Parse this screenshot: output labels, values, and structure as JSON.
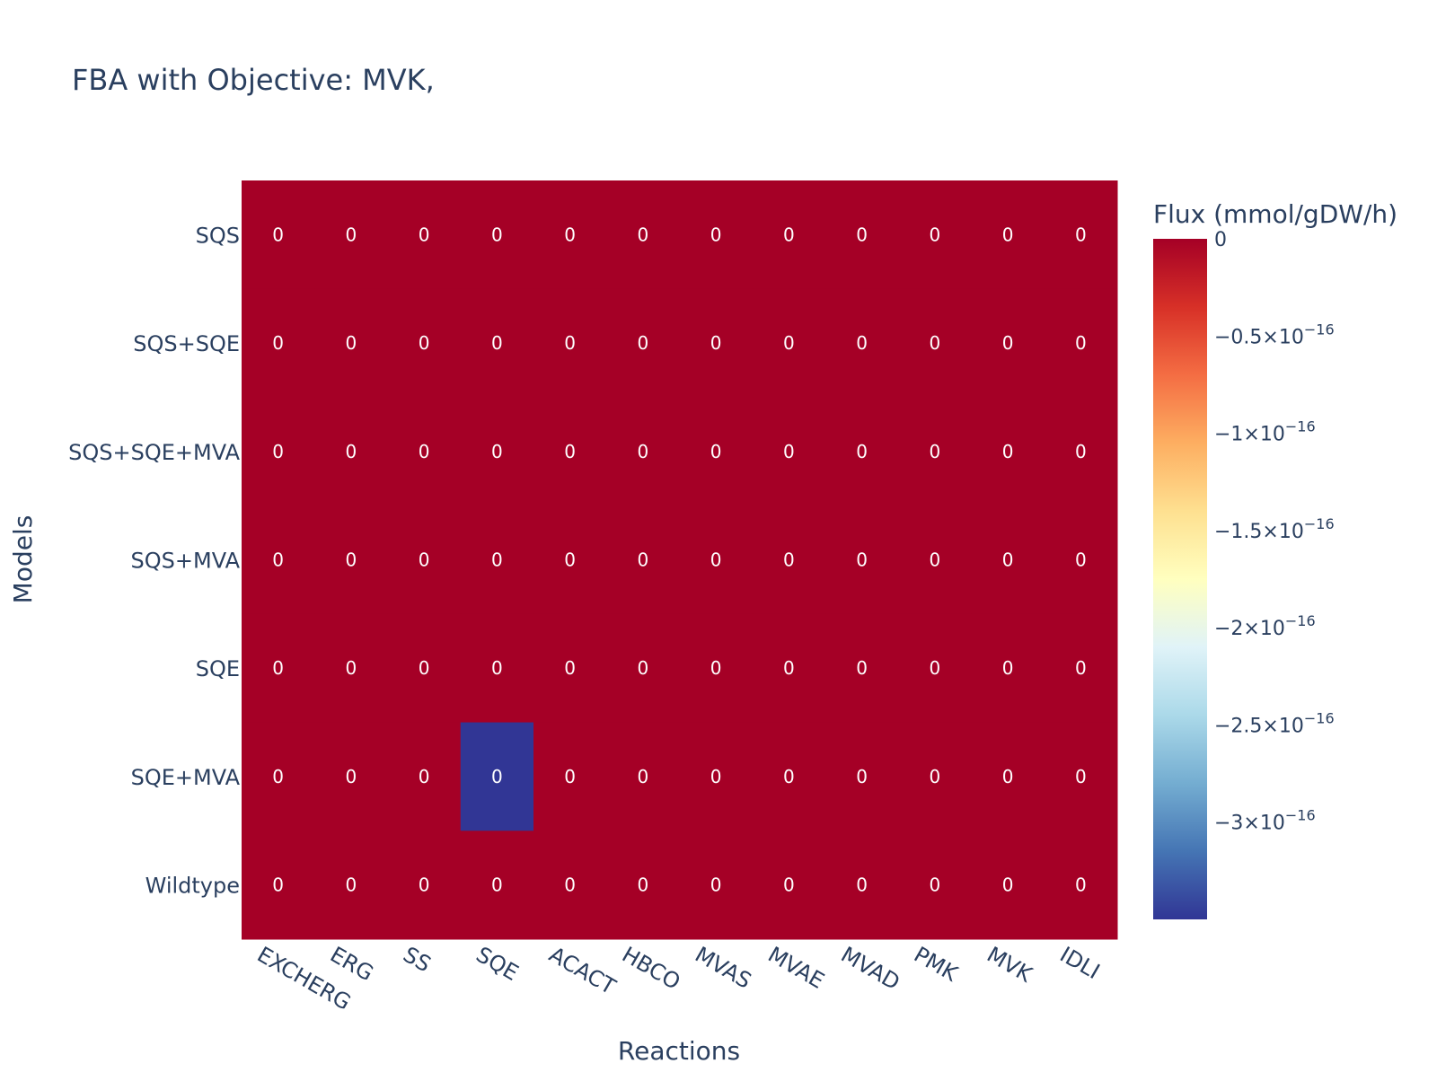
{
  "chart_data": {
    "type": "heatmap",
    "title": "FBA with Objective: MVK,",
    "xlabel": "Reactions",
    "ylabel": "Models",
    "x": [
      "EXCHERG",
      "ERG",
      "SS",
      "SQE",
      "ACACT",
      "HBCO",
      "MVAS",
      "MVAE",
      "MVAD",
      "PMK",
      "MVK",
      "IDLI"
    ],
    "y": [
      "SQS",
      "SQS+SQE",
      "SQS+SQE+MVA",
      "SQS+MVA",
      "SQE",
      "SQE+MVA",
      "Wildtype"
    ],
    "z": [
      [
        0,
        0,
        0,
        0,
        0,
        0,
        0,
        0,
        0,
        0,
        0,
        0
      ],
      [
        0,
        0,
        0,
        0,
        0,
        0,
        0,
        0,
        0,
        0,
        0,
        0
      ],
      [
        0,
        0,
        0,
        0,
        0,
        0,
        0,
        0,
        0,
        0,
        0,
        0
      ],
      [
        0,
        0,
        0,
        0,
        0,
        0,
        0,
        0,
        0,
        0,
        0,
        0
      ],
      [
        0,
        0,
        0,
        0,
        0,
        0,
        0,
        0,
        0,
        0,
        0,
        0
      ],
      [
        0,
        0,
        0,
        -3.5e-16,
        0,
        0,
        0,
        0,
        0,
        0,
        0,
        0
      ],
      [
        0,
        0,
        0,
        0,
        0,
        0,
        0,
        0,
        0,
        0,
        0,
        0
      ]
    ],
    "cell_labels": [
      [
        "0",
        "0",
        "0",
        "0",
        "0",
        "0",
        "0",
        "0",
        "0",
        "0",
        "0",
        "0"
      ],
      [
        "0",
        "0",
        "0",
        "0",
        "0",
        "0",
        "0",
        "0",
        "0",
        "0",
        "0",
        "0"
      ],
      [
        "0",
        "0",
        "0",
        "0",
        "0",
        "0",
        "0",
        "0",
        "0",
        "0",
        "0",
        "0"
      ],
      [
        "0",
        "0",
        "0",
        "0",
        "0",
        "0",
        "0",
        "0",
        "0",
        "0",
        "0",
        "0"
      ],
      [
        "0",
        "0",
        "0",
        "0",
        "0",
        "0",
        "0",
        "0",
        "0",
        "0",
        "0",
        "0"
      ],
      [
        "0",
        "0",
        "0",
        "0",
        "0",
        "0",
        "0",
        "0",
        "0",
        "0",
        "0",
        "0"
      ],
      [
        "0",
        "0",
        "0",
        "0",
        "0",
        "0",
        "0",
        "0",
        "0",
        "0",
        "0",
        "0"
      ]
    ],
    "colorbar": {
      "title": "Flux (mmol/gDW/h)",
      "range": [
        -3.5e-16,
        0
      ],
      "ticks": [
        {
          "value": 0,
          "label": "0"
        },
        {
          "value": -5e-17,
          "label": "−0.5×10",
          "exp": "−16"
        },
        {
          "value": -1e-16,
          "label": "−1×10",
          "exp": "−16"
        },
        {
          "value": -1.5e-16,
          "label": "−1.5×10",
          "exp": "−16"
        },
        {
          "value": -2e-16,
          "label": "−2×10",
          "exp": "−16"
        },
        {
          "value": -2.5e-16,
          "label": "−2.5×10",
          "exp": "−16"
        },
        {
          "value": -3e-16,
          "label": "−3×10",
          "exp": "−16"
        }
      ],
      "colorscale": "RdYlBu",
      "colors": [
        "#313695",
        "#4575b4",
        "#74add1",
        "#abd9e9",
        "#e0f3f8",
        "#ffffbf",
        "#fee090",
        "#fdae61",
        "#f46d43",
        "#d73027",
        "#a50026"
      ]
    },
    "legend": "none",
    "grid": false
  }
}
